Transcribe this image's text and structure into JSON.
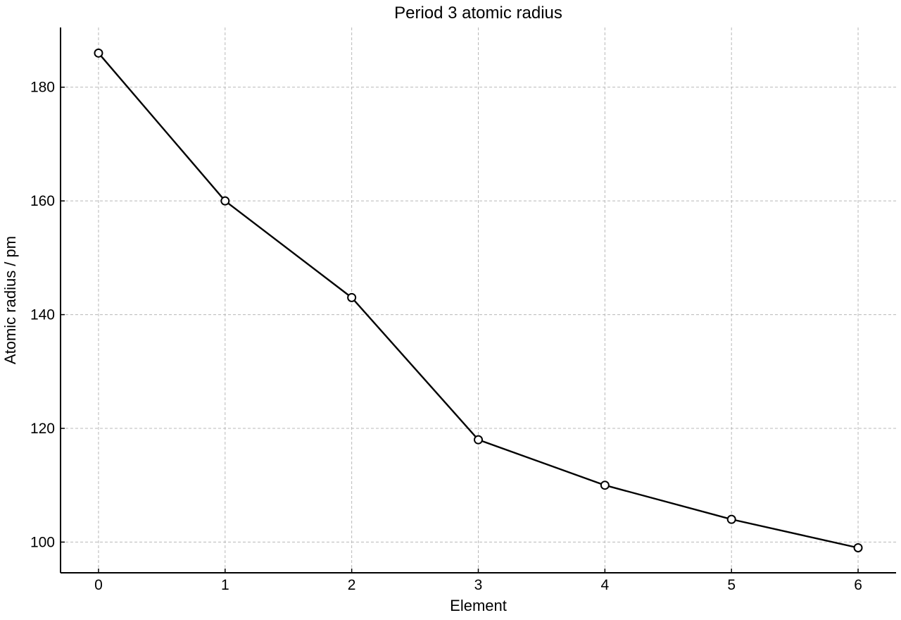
{
  "chart_data": {
    "type": "line",
    "title": "Period 3 atomic radius",
    "xlabel": "Element",
    "ylabel": "Atomic radius / pm",
    "x": [
      0,
      1,
      2,
      3,
      4,
      5,
      6
    ],
    "series": [
      {
        "values": [
          186,
          160,
          143,
          118,
          110,
          104,
          99
        ]
      }
    ],
    "xlim": [
      -0.3,
      6.3
    ],
    "ylim": [
      94.6,
      190.5
    ],
    "xticks": [
      "0",
      "1",
      "2",
      "3",
      "4",
      "5",
      "6"
    ],
    "yticks": [
      100,
      120,
      140,
      160,
      180
    ],
    "ytick_labels": [
      "100",
      "120",
      "140",
      "160",
      "180"
    ],
    "grid": true,
    "line_color": "#000000",
    "marker": "open-circle",
    "grid_color": "#b8b8b8"
  }
}
